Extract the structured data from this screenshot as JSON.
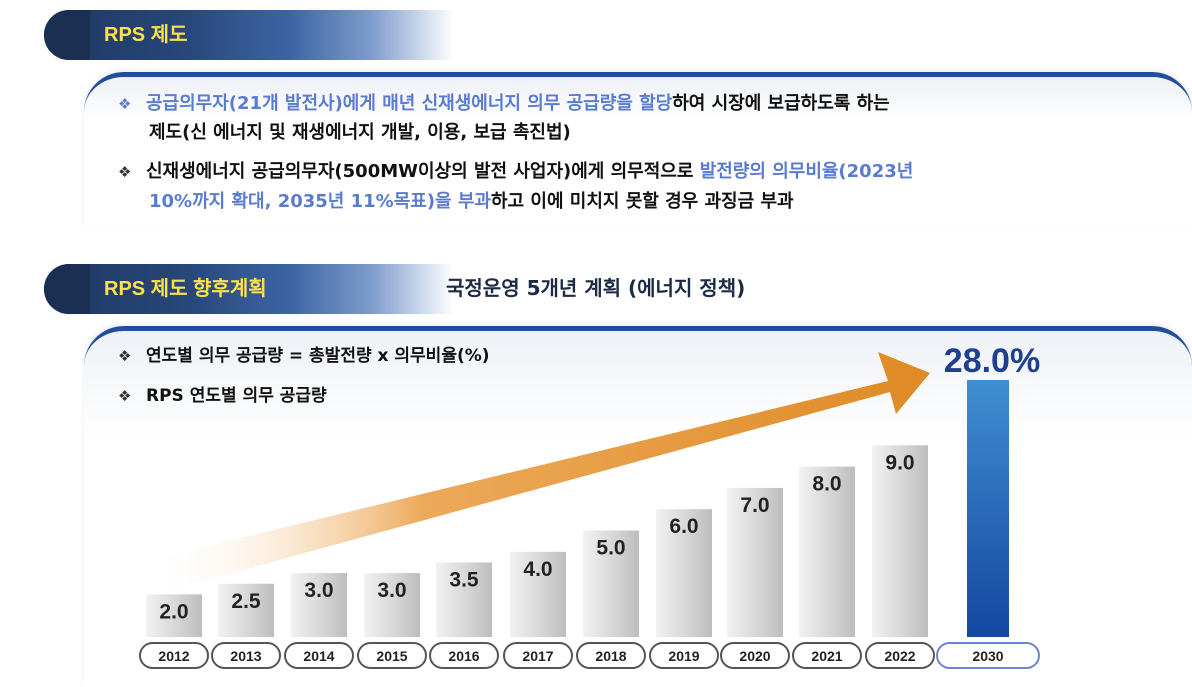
{
  "section1": {
    "title": "RPS 제도",
    "bullets": [
      {
        "line1_a": "공급의무자(21개 발전사)에게 매년 신재생에너지 의무 공급량을 할당",
        "line1_b": "하여 시장에 보급하도록 하는",
        "line2": "제도(신 에너지 및 재생에너지 개발, 이용, 보급 촉진법)"
      },
      {
        "line1_a": "신재생에너지 공급의무자(500MW이상의 발전 사업자)에게 의무적으로 ",
        "line1_b": "발전량의 의무비율(2023년",
        "line2_a": "10%까지 확대, 2035년 11%목표)을 부과",
        "line2_b": "하고 이에 미치지 못할 경우 과징금 부과"
      }
    ]
  },
  "section2": {
    "title": "RPS 제도 향후계획",
    "side_title": "국정운영 5개년 계획 (에너지 정책)",
    "bullets": [
      "연도별 의무 공급량 = 총발전량  x 의무비율(%)",
      "RPS 연도별 의무 공급량"
    ]
  },
  "colors": {
    "tab_dark": "#1f3760",
    "tab_label": "#ffe24a",
    "highlight": "#5a7bd0",
    "arrow": "#e8922c",
    "highlight_bar": "#1c55ad",
    "highlight_label": "#1f3f8f"
  },
  "chart_data": {
    "type": "bar",
    "categories": [
      "2012",
      "2013",
      "2014",
      "2015",
      "2016",
      "2017",
      "2018",
      "2019",
      "2020",
      "2021",
      "2022",
      "2030"
    ],
    "values": [
      2.0,
      2.5,
      3.0,
      3.0,
      3.5,
      4.0,
      5.0,
      6.0,
      7.0,
      8.0,
      9.0,
      28.0
    ],
    "labels": [
      "2.0",
      "2.5",
      "3.0",
      "3.0",
      "3.5",
      "4.0",
      "5.0",
      "6.0",
      "7.0",
      "8.0",
      "9.0",
      "28.0%"
    ],
    "highlight_category": "2030",
    "title": "",
    "xlabel": "",
    "ylabel": "",
    "annotation": "upward trend arrow"
  }
}
